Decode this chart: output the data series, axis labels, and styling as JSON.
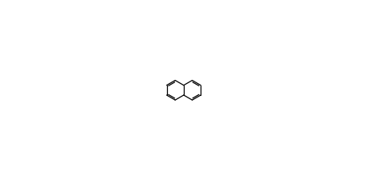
{
  "bg_color": "#ffffff",
  "line_color": "#000000",
  "ring_color": "#000000",
  "text_color": "#000000",
  "figsize": [
    4.63,
    2.3
  ],
  "dpi": 100
}
